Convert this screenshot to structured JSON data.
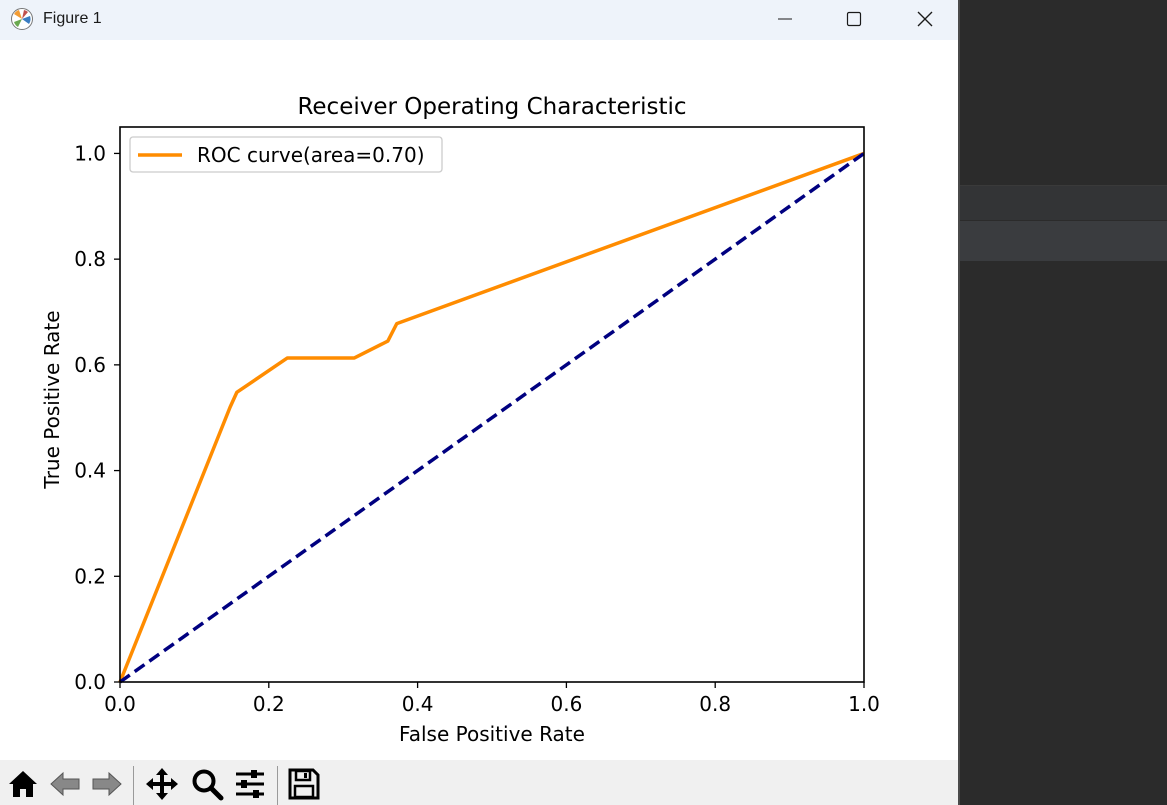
{
  "window": {
    "title": "Figure 1",
    "buttons": {
      "minimize": "minimize",
      "maximize": "maximize",
      "close": "close"
    }
  },
  "toolbar": {
    "tools": [
      "home-icon",
      "back-icon",
      "forward-icon",
      "pan-icon",
      "zoom-icon",
      "configure-subplots-icon",
      "save-icon"
    ]
  },
  "chart_data": {
    "type": "line",
    "title": "Receiver Operating Characteristic",
    "xlabel": "False Positive Rate",
    "ylabel": "True Positive Rate",
    "xlim": [
      0.0,
      1.0
    ],
    "ylim": [
      0.0,
      1.05
    ],
    "xticks": [
      "0.0",
      "0.2",
      "0.4",
      "0.6",
      "0.8",
      "1.0"
    ],
    "yticks": [
      "0.0",
      "0.2",
      "0.4",
      "0.6",
      "0.8",
      "1.0"
    ],
    "legend_position": "upper-left",
    "legend": [
      "ROC curve(area=0.70)"
    ],
    "series": [
      {
        "name": "ROC curve(area=0.70)",
        "color": "#ff8c00",
        "style": "solid",
        "x": [
          0.0,
          0.148,
          0.157,
          0.225,
          0.315,
          0.36,
          0.372,
          1.0
        ],
        "y": [
          0.0,
          0.52,
          0.548,
          0.613,
          0.613,
          0.645,
          0.678,
          1.0
        ]
      },
      {
        "color": "#000080",
        "style": "dashed",
        "x": [
          0.0,
          1.0
        ],
        "y": [
          0.0,
          1.0
        ]
      }
    ]
  }
}
